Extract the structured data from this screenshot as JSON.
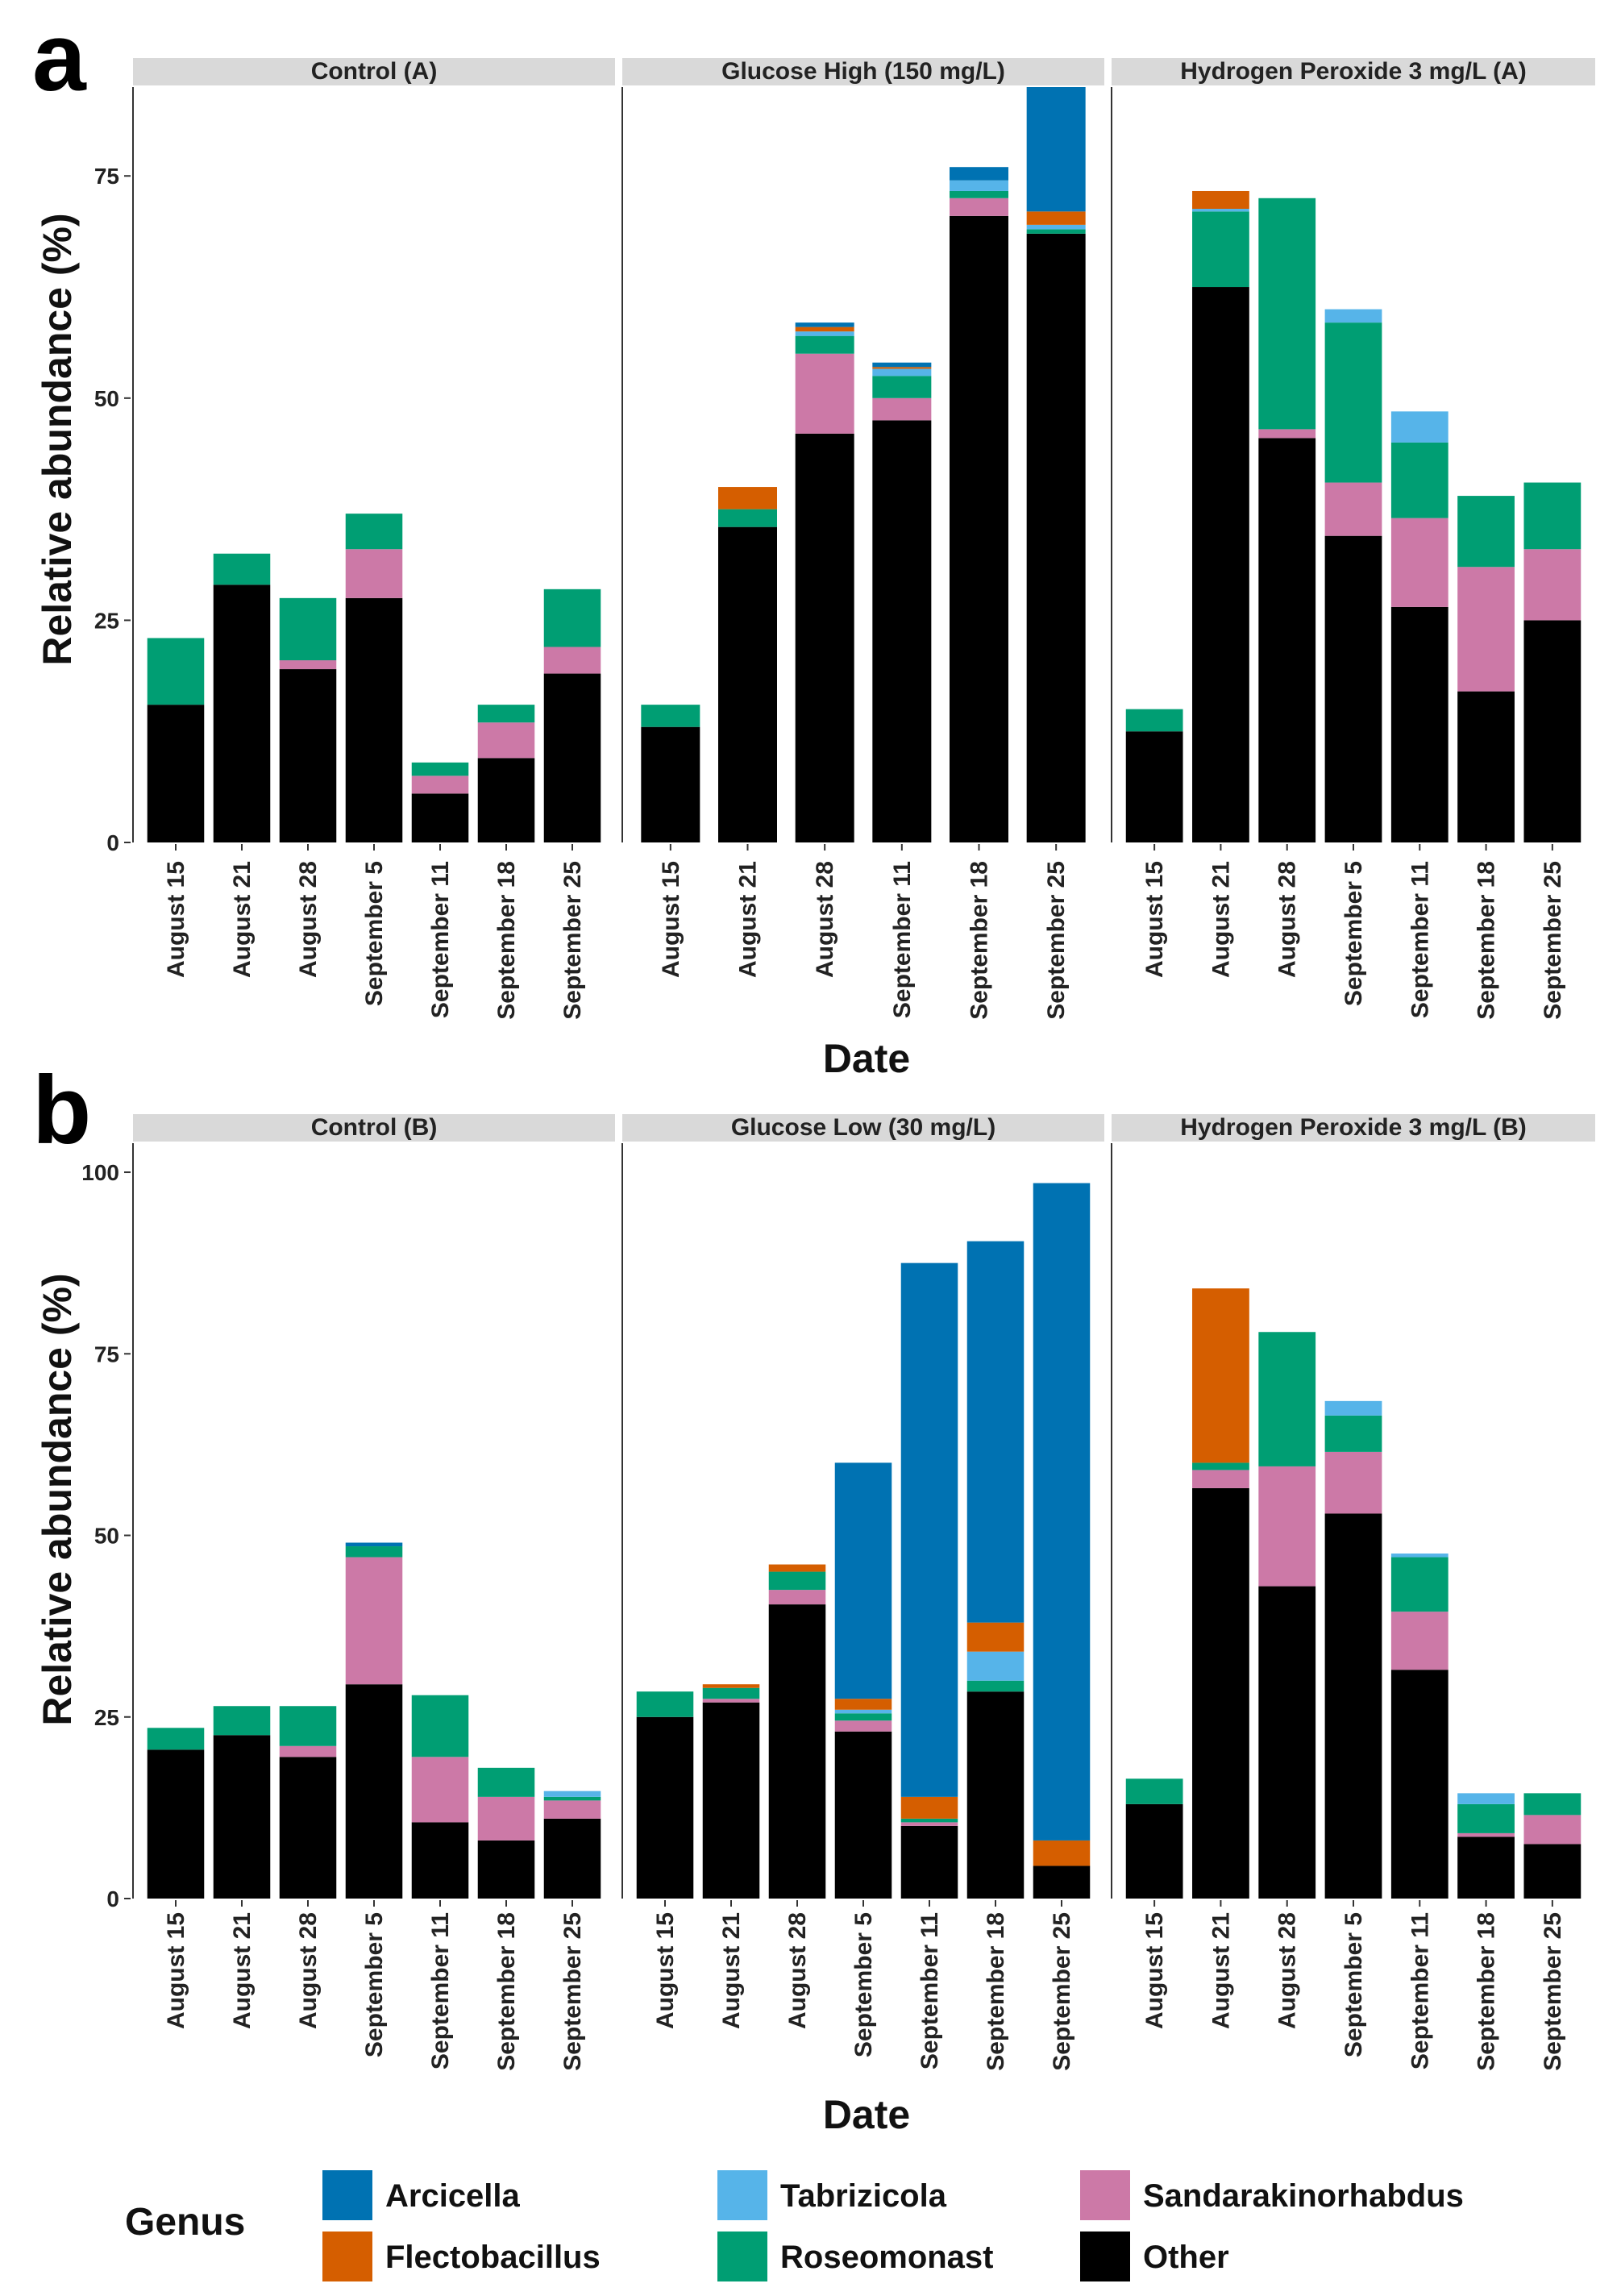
{
  "colors": {
    "Arcicella": "#0072B2",
    "Flectobacillus": "#D55E00",
    "Tabrizicola": "#56B4E9",
    "Roseomonast": "#009E73",
    "Sandarakinorhabdus": "#CC79A7",
    "Other": "#000000",
    "strip": "#D9D9D9",
    "panel_border": "#333333"
  },
  "legend": {
    "title": "Genus",
    "items": [
      {
        "label": "Arcicella",
        "color": "#0072B2"
      },
      {
        "label": "Tabrizicola",
        "color": "#56B4E9"
      },
      {
        "label": "Sandarakinorhabdus",
        "color": "#CC79A7"
      },
      {
        "label": "Flectobacillus",
        "color": "#D55E00"
      },
      {
        "label": "Roseomonast",
        "color": "#009E73"
      },
      {
        "label": "Other",
        "color": "#000000"
      }
    ]
  },
  "chart_data": [
    {
      "type": "bar",
      "stacked": true,
      "panel_label": "a",
      "ylabel": "Relative abundance (%)",
      "xlabel": "Date",
      "ylim": [
        0,
        85
      ],
      "yticks": [
        0,
        25,
        50,
        75
      ],
      "stack_order": [
        "Other",
        "Sandarakinorhabdus",
        "Roseomonast",
        "Tabrizicola",
        "Flectobacillus",
        "Arcicella"
      ],
      "facets": [
        {
          "title": "Control (A)",
          "categories": [
            "August 15",
            "August 21",
            "August 28",
            "September 5",
            "September 11",
            "September 18",
            "September 25"
          ],
          "series": [
            {
              "name": "Other",
              "values": [
                15.5,
                29,
                19.5,
                27.5,
                5.5,
                9.5,
                19
              ]
            },
            {
              "name": "Sandarakinorhabdus",
              "values": [
                0,
                0,
                1,
                5.5,
                2,
                4,
                3
              ]
            },
            {
              "name": "Roseomonast",
              "values": [
                7.5,
                3.5,
                7,
                4,
                1.5,
                2,
                6.5
              ]
            },
            {
              "name": "Tabrizicola",
              "values": [
                0,
                0,
                0,
                0,
                0,
                0,
                0
              ]
            },
            {
              "name": "Flectobacillus",
              "values": [
                0,
                0,
                0,
                0,
                0,
                0,
                0
              ]
            },
            {
              "name": "Arcicella",
              "values": [
                0,
                0,
                0,
                0,
                0,
                0,
                0
              ]
            }
          ]
        },
        {
          "title": "Glucose High (150 mg/L)",
          "categories": [
            "August 15",
            "August 21",
            "August 28",
            "September 11",
            "September 18",
            "September 25"
          ],
          "series": [
            {
              "name": "Other",
              "values": [
                13,
                35.5,
                46,
                47.5,
                70.5,
                68.5
              ]
            },
            {
              "name": "Sandarakinorhabdus",
              "values": [
                0,
                0,
                9,
                2.5,
                2,
                0
              ]
            },
            {
              "name": "Roseomonast",
              "values": [
                2.5,
                2,
                2,
                2.5,
                0.8,
                0.5
              ]
            },
            {
              "name": "Tabrizicola",
              "values": [
                0,
                0,
                0.5,
                0.8,
                1.2,
                0.5
              ]
            },
            {
              "name": "Flectobacillus",
              "values": [
                0,
                2.5,
                0.5,
                0.2,
                0,
                1.5
              ]
            },
            {
              "name": "Arcicella",
              "values": [
                0,
                0,
                0.5,
                0.5,
                1.5,
                14
              ]
            }
          ]
        },
        {
          "title": "Hydrogen Peroxide 3 mg/L (A)",
          "categories": [
            "August 15",
            "August 21",
            "August 28",
            "September 5",
            "September 11",
            "September 18",
            "September 25"
          ],
          "series": [
            {
              "name": "Other",
              "values": [
                12.5,
                62.5,
                45.5,
                34.5,
                26.5,
                17,
                25
              ]
            },
            {
              "name": "Sandarakinorhabdus",
              "values": [
                0,
                0,
                1,
                6,
                10,
                14,
                8
              ]
            },
            {
              "name": "Roseomonast",
              "values": [
                2.5,
                8.5,
                26,
                18,
                8.5,
                8,
                7.5
              ]
            },
            {
              "name": "Tabrizicola",
              "values": [
                0,
                0.3,
                0,
                1.5,
                3.5,
                0,
                0
              ]
            },
            {
              "name": "Flectobacillus",
              "values": [
                0,
                2,
                0,
                0,
                0,
                0,
                0
              ]
            },
            {
              "name": "Arcicella",
              "values": [
                0,
                0,
                0,
                0,
                0,
                0,
                0
              ]
            }
          ]
        }
      ]
    },
    {
      "type": "bar",
      "stacked": true,
      "panel_label": "b",
      "ylabel": "Relative abundance (%)",
      "xlabel": "Date",
      "ylim": [
        0,
        100
      ],
      "yticks": [
        0,
        25,
        50,
        75,
        100
      ],
      "stack_order": [
        "Other",
        "Sandarakinorhabdus",
        "Roseomonast",
        "Tabrizicola",
        "Flectobacillus",
        "Arcicella"
      ],
      "facets": [
        {
          "title": "Control (B)",
          "categories": [
            "August 15",
            "August 21",
            "August 28",
            "September 5",
            "September 11",
            "September 18",
            "September 25"
          ],
          "series": [
            {
              "name": "Other",
              "values": [
                20.5,
                22.5,
                19.5,
                29.5,
                10.5,
                8,
                11
              ]
            },
            {
              "name": "Sandarakinorhabdus",
              "values": [
                0,
                0,
                1.5,
                17.5,
                9,
                6,
                2.5
              ]
            },
            {
              "name": "Roseomonast",
              "values": [
                3,
                4,
                5.5,
                1.5,
                8.5,
                4,
                0.5
              ]
            },
            {
              "name": "Tabrizicola",
              "values": [
                0,
                0,
                0,
                0,
                0,
                0,
                0.8
              ]
            },
            {
              "name": "Flectobacillus",
              "values": [
                0,
                0,
                0,
                0,
                0,
                0,
                0
              ]
            },
            {
              "name": "Arcicella",
              "values": [
                0,
                0,
                0,
                0.5,
                0,
                0,
                0
              ]
            }
          ]
        },
        {
          "title": "Glucose Low (30 mg/L)",
          "categories": [
            "August 15",
            "August 21",
            "August 28",
            "September 5",
            "September 11",
            "September 18",
            "September 25"
          ],
          "series": [
            {
              "name": "Other",
              "values": [
                25,
                27,
                40.5,
                23,
                10,
                28.5,
                4.5
              ]
            },
            {
              "name": "Sandarakinorhabdus",
              "values": [
                0,
                0.5,
                2,
                1.5,
                0.5,
                0,
                0
              ]
            },
            {
              "name": "Roseomonast",
              "values": [
                3.5,
                1.5,
                2.5,
                1,
                0.5,
                1.5,
                0
              ]
            },
            {
              "name": "Tabrizicola",
              "values": [
                0,
                0,
                0,
                0.5,
                0,
                4,
                0
              ]
            },
            {
              "name": "Flectobacillus",
              "values": [
                0,
                0.5,
                1,
                1.5,
                3,
                4,
                3.5
              ]
            },
            {
              "name": "Arcicella",
              "values": [
                0,
                0,
                0,
                32.5,
                73.5,
                52.5,
                90.5
              ]
            }
          ]
        },
        {
          "title": "Hydrogen Peroxide 3 mg/L (B)",
          "categories": [
            "August 15",
            "August 21",
            "August 28",
            "September 5",
            "September 11",
            "September 18",
            "September 25"
          ],
          "series": [
            {
              "name": "Other",
              "values": [
                13,
                56.5,
                43,
                53,
                31.5,
                8.5,
                7.5
              ]
            },
            {
              "name": "Sandarakinorhabdus",
              "values": [
                0,
                2.5,
                16.5,
                8.5,
                8,
                0.5,
                4
              ]
            },
            {
              "name": "Roseomonast",
              "values": [
                3.5,
                1,
                18.5,
                5,
                7.5,
                4,
                3
              ]
            },
            {
              "name": "Tabrizicola",
              "values": [
                0,
                0,
                0,
                2,
                0.5,
                1.5,
                0
              ]
            },
            {
              "name": "Flectobacillus",
              "values": [
                0,
                24,
                0,
                0,
                0,
                0,
                0
              ]
            },
            {
              "name": "Arcicella",
              "values": [
                0,
                0,
                0,
                0,
                0,
                0,
                0
              ]
            }
          ]
        }
      ]
    }
  ]
}
